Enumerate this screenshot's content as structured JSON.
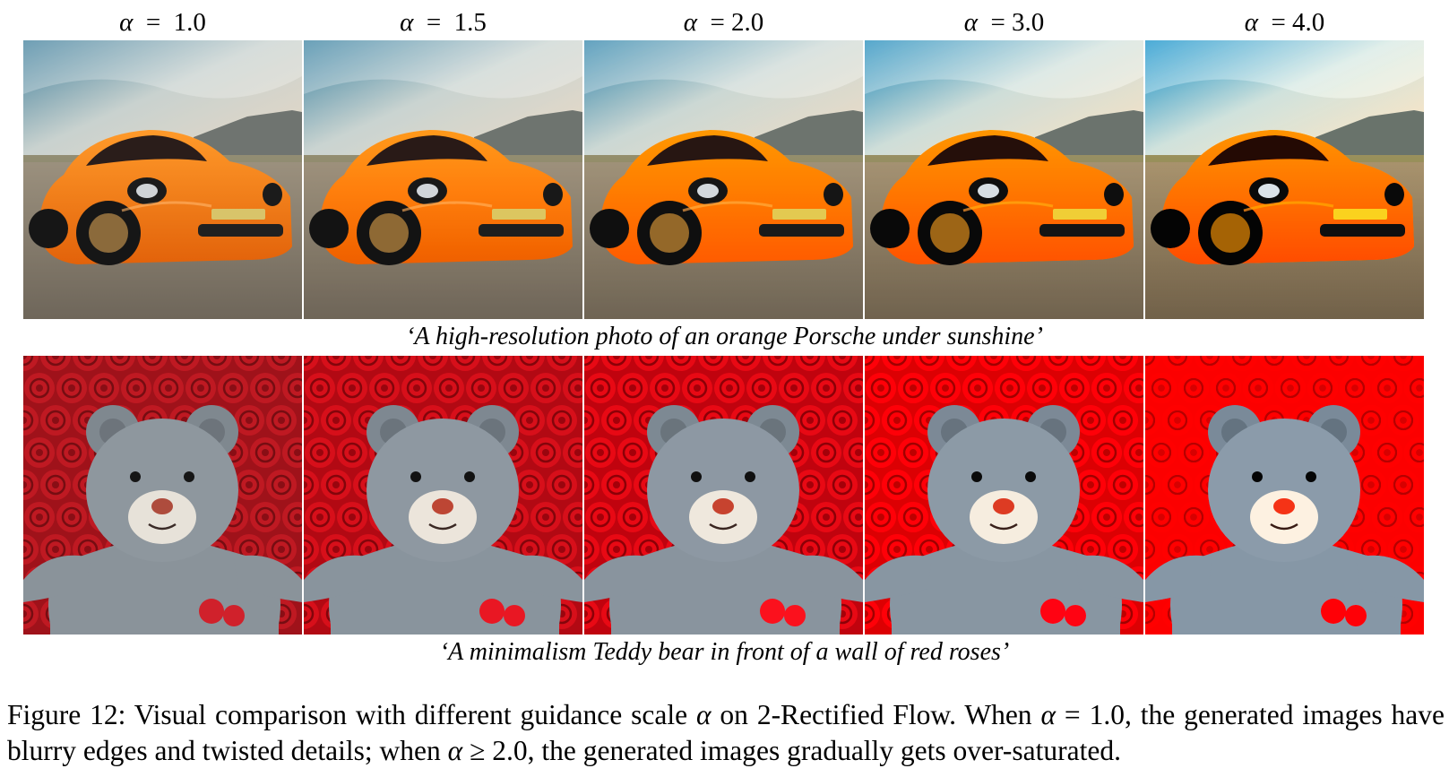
{
  "figure": {
    "column_labels": [
      {
        "symbol": "α",
        "eq": "=",
        "value": "1.0"
      },
      {
        "symbol": "α",
        "eq": "=",
        "value": "1.5"
      },
      {
        "symbol": "α",
        "eq": "=",
        "value": "2.0"
      },
      {
        "symbol": "α",
        "eq": "=",
        "value": "3.0"
      },
      {
        "symbol": "α",
        "eq": "=",
        "value": "4.0"
      }
    ],
    "rows": [
      {
        "prompt": "‘A high-resolution photo of an orange Porsche under sunshine’",
        "subject": "orange-porsche",
        "tiles": [
          {
            "saturation": 1.0
          },
          {
            "saturation": 1.1
          },
          {
            "saturation": 1.25
          },
          {
            "saturation": 1.5
          },
          {
            "saturation": 1.7
          }
        ]
      },
      {
        "prompt": "‘A minimalism Teddy bear in front of a wall of red roses’",
        "subject": "teddy-bear-roses",
        "tiles": [
          {
            "saturation": 0.95
          },
          {
            "saturation": 1.1
          },
          {
            "saturation": 1.2
          },
          {
            "saturation": 1.4
          },
          {
            "saturation": 1.6
          }
        ]
      }
    ],
    "caption": {
      "label": "Figure 12:",
      "part1": " Visual comparison with different guidance scale ",
      "sym1": "α",
      "part2": " on 2-Rectified Flow. When ",
      "sym2": "α",
      "part3": " = 1.0, the generated images have blurry edges and twisted details; when ",
      "sym3": "α",
      "part4": " ≥ 2.0, the generated images gradually gets over-saturated."
    }
  }
}
